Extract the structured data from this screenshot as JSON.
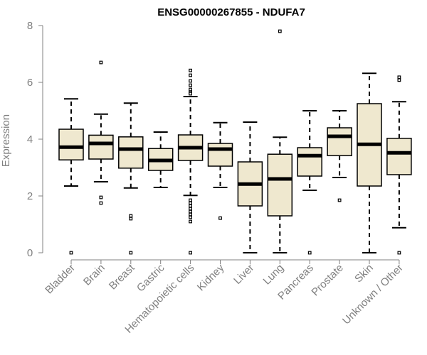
{
  "chart_data": {
    "type": "boxplot",
    "title": "ENSG00000267855 - NDUFA7",
    "xlabel": "",
    "ylabel": "Expression",
    "ylim": [
      0,
      8
    ],
    "yticks": [
      0,
      2,
      4,
      6,
      8
    ],
    "colors": {
      "box_fill": "#efe8cf",
      "stroke": "#000000",
      "axis": "#808080"
    },
    "categories": [
      "Bladder",
      "Brain",
      "Breast",
      "Gastric",
      "Hematopoietic cells",
      "Kidney",
      "Liver",
      "Lung",
      "Pancreas",
      "Prostate",
      "Skin",
      "Unknown / Other"
    ],
    "boxes": [
      {
        "name": "Bladder",
        "whisker_low": 2.35,
        "q1": 3.27,
        "median": 3.72,
        "q3": 4.35,
        "whisker_high": 5.42,
        "outliers": [
          0.0
        ]
      },
      {
        "name": "Brain",
        "whisker_low": 2.5,
        "q1": 3.3,
        "median": 3.85,
        "q3": 4.14,
        "whisker_high": 4.88,
        "outliers": [
          6.7,
          1.95,
          1.75
        ]
      },
      {
        "name": "Breast",
        "whisker_low": 2.28,
        "q1": 2.98,
        "median": 3.65,
        "q3": 4.08,
        "whisker_high": 5.27,
        "outliers": [
          1.3,
          1.2,
          0.0
        ]
      },
      {
        "name": "Gastric",
        "whisker_low": 2.3,
        "q1": 2.9,
        "median": 3.25,
        "q3": 3.67,
        "whisker_high": 4.25,
        "outliers": []
      },
      {
        "name": "Hematopoietic cells",
        "whisker_low": 2.02,
        "q1": 3.25,
        "median": 3.7,
        "q3": 4.15,
        "whisker_high": 5.5,
        "outliers": [
          6.42,
          6.25,
          6.05,
          5.9,
          5.75,
          5.65,
          5.6,
          1.85,
          1.75,
          1.65,
          1.55,
          1.45,
          1.35,
          1.25,
          1.1,
          0.0
        ]
      },
      {
        "name": "Kidney",
        "whisker_low": 2.3,
        "q1": 3.05,
        "median": 3.65,
        "q3": 3.85,
        "whisker_high": 4.58,
        "outliers": [
          1.22
        ]
      },
      {
        "name": "Liver",
        "whisker_low": 0.0,
        "q1": 1.65,
        "median": 2.42,
        "q3": 3.2,
        "whisker_high": 4.6,
        "outliers": []
      },
      {
        "name": "Lung",
        "whisker_low": 0.0,
        "q1": 1.3,
        "median": 2.6,
        "q3": 3.47,
        "whisker_high": 4.07,
        "outliers": [
          7.8
        ]
      },
      {
        "name": "Pancreas",
        "whisker_low": 2.2,
        "q1": 2.7,
        "median": 3.42,
        "q3": 3.7,
        "whisker_high": 5.0,
        "outliers": [
          0.0
        ]
      },
      {
        "name": "Prostate",
        "whisker_low": 2.65,
        "q1": 3.42,
        "median": 4.1,
        "q3": 4.4,
        "whisker_high": 5.0,
        "outliers": [
          1.85
        ]
      },
      {
        "name": "Skin",
        "whisker_low": 0.0,
        "q1": 2.35,
        "median": 3.82,
        "q3": 5.25,
        "whisker_high": 6.32,
        "outliers": []
      },
      {
        "name": "Unknown / Other",
        "whisker_low": 0.88,
        "q1": 2.75,
        "median": 3.52,
        "q3": 4.03,
        "whisker_high": 5.32,
        "outliers": [
          6.18,
          6.08,
          0.0
        ]
      }
    ]
  }
}
